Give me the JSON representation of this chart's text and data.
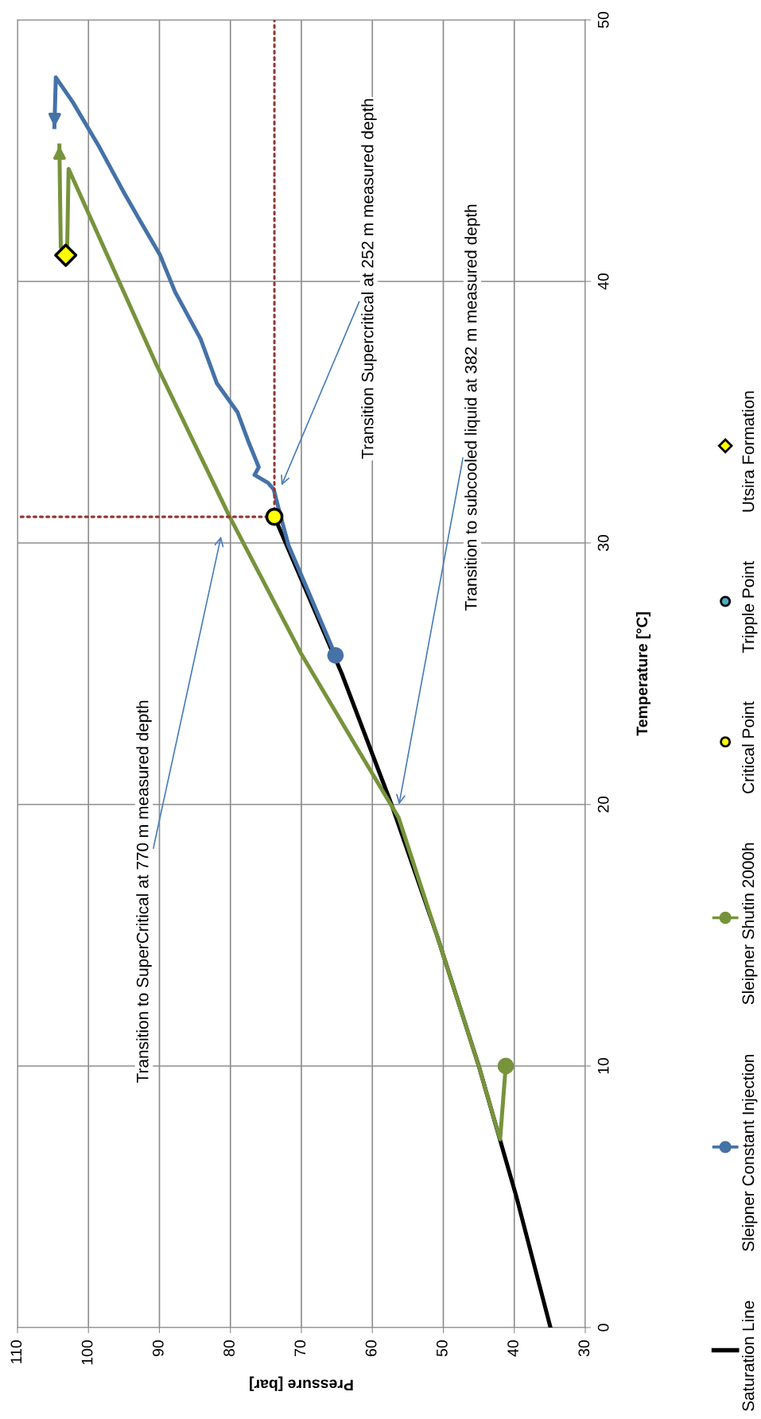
{
  "chart_data": {
    "type": "line",
    "xlabel": "Pressure [bar]",
    "ylabel": "Temperature [°C]",
    "xlim": [
      110,
      30
    ],
    "xticks": [
      110,
      100,
      90,
      80,
      70,
      60,
      50,
      40,
      30
    ],
    "ylim": [
      0,
      50
    ],
    "yticks": [
      0,
      10,
      20,
      30,
      40,
      50
    ],
    "grid": true,
    "legend": "right",
    "series": [
      {
        "name": "Saturation Line",
        "color": "#000000",
        "line_style": "solid",
        "x": [
          34.9,
          39.7,
          45.0,
          50.9,
          57.3,
          64.3,
          73.8
        ],
        "values": [
          0,
          5,
          10,
          15,
          20,
          25,
          31.0
        ]
      },
      {
        "name": "Sleipner Constant Injection",
        "color": "#4572a7",
        "line_style": "solid",
        "x": [
          65.2,
          68.8,
          71.8,
          73.1,
          73.9,
          74.7,
          76.6,
          76.0,
          77.5,
          79.0,
          81.9,
          84.2,
          87.8,
          89.9,
          92.9,
          95.0,
          98.6,
          102.2,
          104.6,
          104.8
        ],
        "values": [
          25.7,
          28.0,
          29.9,
          31.2,
          32.05,
          32.3,
          32.6,
          32.9,
          33.9,
          35.0,
          36.1,
          37.8,
          39.6,
          41.0,
          42.4,
          43.4,
          45.2,
          46.85,
          47.8,
          45.9
        ]
      },
      {
        "name": "Sleipner Shutin 2000h",
        "color": "#77933c",
        "line_style": "solid",
        "x": [
          41.2,
          42.0,
          45.0,
          50.9,
          56.3,
          61.8,
          70.1,
          80.1,
          90.4,
          102.8,
          103.0,
          103.9,
          104.1
        ],
        "values": [
          10.0,
          7.2,
          10.0,
          15.0,
          19.5,
          22.0,
          25.8,
          31.0,
          36.8,
          44.3,
          41.3,
          41.3,
          45.2
        ]
      },
      {
        "name": "Critical Point",
        "type": "scatter",
        "color": "#ffff00",
        "marker": "circle",
        "x": [
          73.8
        ],
        "values": [
          31.0
        ]
      },
      {
        "name": "Tripple Point",
        "type": "scatter",
        "color": "#4bacc6",
        "marker": "circle"
      },
      {
        "name": "Utsira Formation",
        "type": "scatter",
        "color": "#ffff00",
        "marker": "diamond",
        "x": [
          103.2
        ],
        "values": [
          41.0
        ]
      },
      {
        "color": "#953735",
        "line_style": "dotted",
        "x": [
          73.8,
          110
        ],
        "values": [
          31.0,
          31.0
        ]
      },
      {
        "color": "#953735",
        "line_style": "dotted",
        "x": [
          73.8,
          73.8
        ],
        "values": [
          31.0,
          50
        ]
      }
    ],
    "annotations": [
      "Transition to SuperCritical at 770 m measured depth",
      "Transition Supercritical at 252 m measured depth",
      "Transition to subcooled liquid at 382 m measured depth"
    ]
  }
}
